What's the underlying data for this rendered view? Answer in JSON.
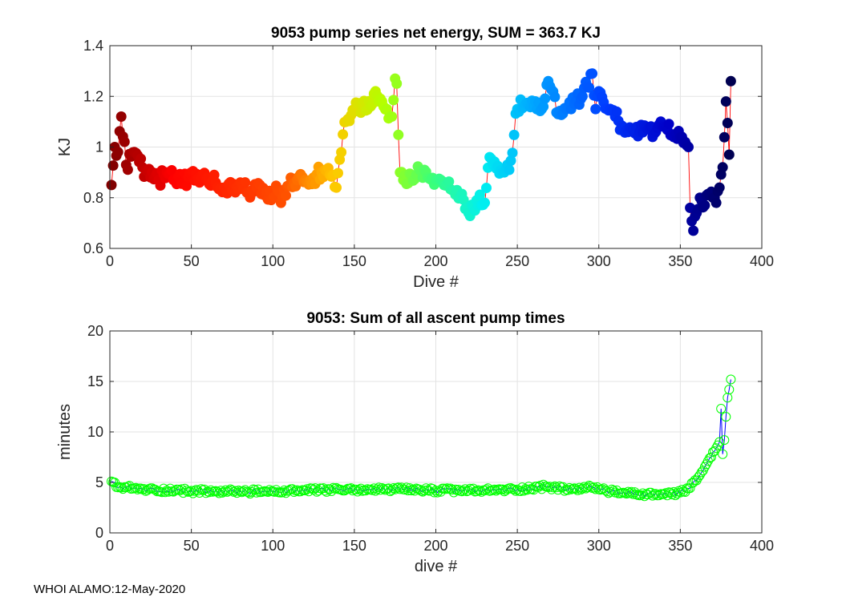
{
  "footer": "WHOI ALAMO:12-May-2020",
  "chart_data": [
    {
      "type": "scatter",
      "title": "9053 pump series net energy, SUM = 363.7 KJ",
      "xlabel": "Dive #",
      "ylabel": "KJ",
      "xlim": [
        0,
        400
      ],
      "ylim": [
        0.6,
        1.4
      ],
      "xticks": [
        "0",
        "50",
        "100",
        "150",
        "200",
        "250",
        "300",
        "350",
        "400"
      ],
      "yticks": [
        "0.6",
        "0.8",
        "1",
        "1.2",
        "1.4"
      ],
      "grid": true,
      "line_color": "#ff0000",
      "marker_colormap": "jet (dark red → red → orange → yellow → green → cyan → blue → dark navy by dive #)",
      "keypoints": {
        "x": [
          1,
          3,
          5,
          7,
          10,
          15,
          20,
          25,
          30,
          35,
          40,
          45,
          50,
          55,
          60,
          65,
          70,
          75,
          80,
          85,
          90,
          95,
          100,
          103,
          105,
          110,
          115,
          120,
          125,
          130,
          135,
          139,
          141,
          143,
          145,
          150,
          155,
          160,
          163,
          165,
          170,
          173,
          175,
          176,
          178,
          180,
          185,
          190,
          195,
          200,
          205,
          210,
          215,
          220,
          225,
          230,
          233,
          235,
          240,
          245,
          250,
          255,
          260,
          265,
          269,
          275,
          280,
          285,
          290,
          296,
          298,
          300,
          305,
          310,
          315,
          320,
          325,
          330,
          335,
          340,
          345,
          350,
          353,
          355,
          356,
          358,
          360,
          362,
          365,
          368,
          370,
          372,
          374,
          376,
          378,
          380,
          381
        ],
        "y": [
          0.85,
          1.0,
          0.98,
          1.12,
          0.93,
          0.98,
          0.92,
          0.88,
          0.87,
          0.9,
          0.87,
          0.86,
          0.9,
          0.86,
          0.88,
          0.86,
          0.84,
          0.83,
          0.86,
          0.82,
          0.84,
          0.81,
          0.8,
          0.83,
          0.78,
          0.85,
          0.87,
          0.87,
          0.88,
          0.9,
          0.89,
          0.84,
          0.95,
          1.05,
          1.1,
          1.14,
          1.17,
          1.16,
          1.22,
          1.18,
          1.15,
          1.12,
          1.27,
          1.25,
          0.9,
          0.87,
          0.89,
          0.91,
          0.88,
          0.87,
          0.85,
          0.83,
          0.8,
          0.74,
          0.79,
          0.78,
          0.96,
          0.93,
          0.91,
          0.91,
          1.15,
          1.17,
          1.16,
          1.15,
          1.26,
          1.13,
          1.15,
          1.17,
          1.2,
          1.29,
          1.15,
          1.22,
          1.15,
          1.12,
          1.08,
          1.07,
          1.06,
          1.07,
          1.06,
          1.08,
          1.05,
          1.04,
          1.02,
          1.0,
          0.76,
          0.67,
          0.74,
          0.8,
          0.77,
          0.81,
          0.8,
          0.78,
          0.84,
          0.92,
          1.18,
          0.97,
          1.26
        ]
      }
    },
    {
      "type": "line",
      "title": "9053: Sum of all ascent pump times",
      "xlabel": "dive #",
      "ylabel": "minutes",
      "xlim": [
        0,
        400
      ],
      "ylim": [
        0,
        20
      ],
      "xticks": [
        "0",
        "50",
        "100",
        "150",
        "200",
        "250",
        "300",
        "350",
        "400"
      ],
      "yticks": [
        "0",
        "5",
        "10",
        "15",
        "20"
      ],
      "grid": true,
      "line_color": "#0000ff",
      "marker_color": "#00ff00",
      "keypoints": {
        "x": [
          1,
          5,
          10,
          20,
          40,
          60,
          80,
          100,
          120,
          150,
          175,
          200,
          230,
          250,
          268,
          280,
          297,
          310,
          330,
          345,
          350,
          355,
          360,
          363,
          366,
          369,
          372,
          374,
          375,
          376,
          377,
          378,
          379,
          380,
          381
        ],
        "y": [
          5.1,
          4.5,
          4.5,
          4.3,
          4.2,
          4.1,
          4.1,
          4.1,
          4.2,
          4.3,
          4.3,
          4.2,
          4.2,
          4.3,
          4.6,
          4.3,
          4.5,
          4.0,
          3.8,
          3.8,
          4.0,
          4.4,
          5.2,
          6.0,
          6.8,
          7.5,
          8.4,
          9.0,
          12.3,
          7.8,
          9.2,
          11.5,
          13.4,
          14.2,
          15.2
        ]
      }
    }
  ]
}
